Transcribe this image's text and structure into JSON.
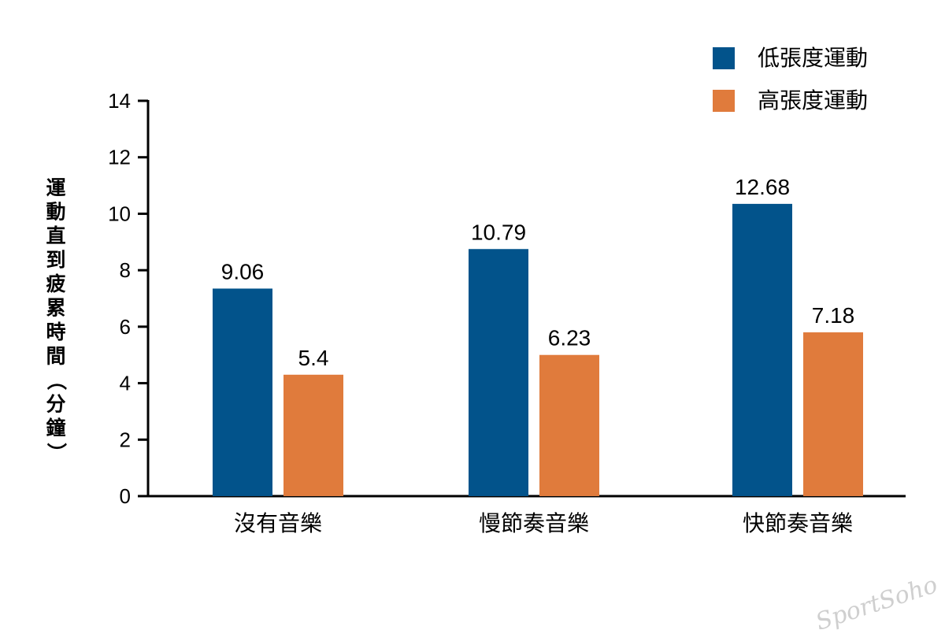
{
  "chart_data": {
    "type": "bar",
    "categories": [
      "沒有音樂",
      "慢節奏音樂",
      "快節奏音樂"
    ],
    "series": [
      {
        "name": "低張度運動",
        "values": [
          9.06,
          10.79,
          12.68
        ],
        "color": "#02538b"
      },
      {
        "name": "高張度運動",
        "values": [
          5.4,
          6.23,
          7.18
        ],
        "color": "#e07b3c"
      }
    ],
    "bar_heights": [
      [
        7.35,
        8.75,
        10.35
      ],
      [
        4.3,
        5.0,
        5.8
      ]
    ],
    "data_labels": [
      [
        "9.06",
        "10.79",
        "12.68"
      ],
      [
        "5.4",
        "6.23",
        "7.18"
      ]
    ],
    "ylabel": "運動直到疲累時間（分鐘）",
    "ylim": [
      0,
      14
    ],
    "yticks": [
      "0",
      "2",
      "4",
      "6",
      "8",
      "10",
      "12",
      "14"
    ],
    "legend_position": "top-right",
    "grid": false
  },
  "watermark": "SportSoho"
}
